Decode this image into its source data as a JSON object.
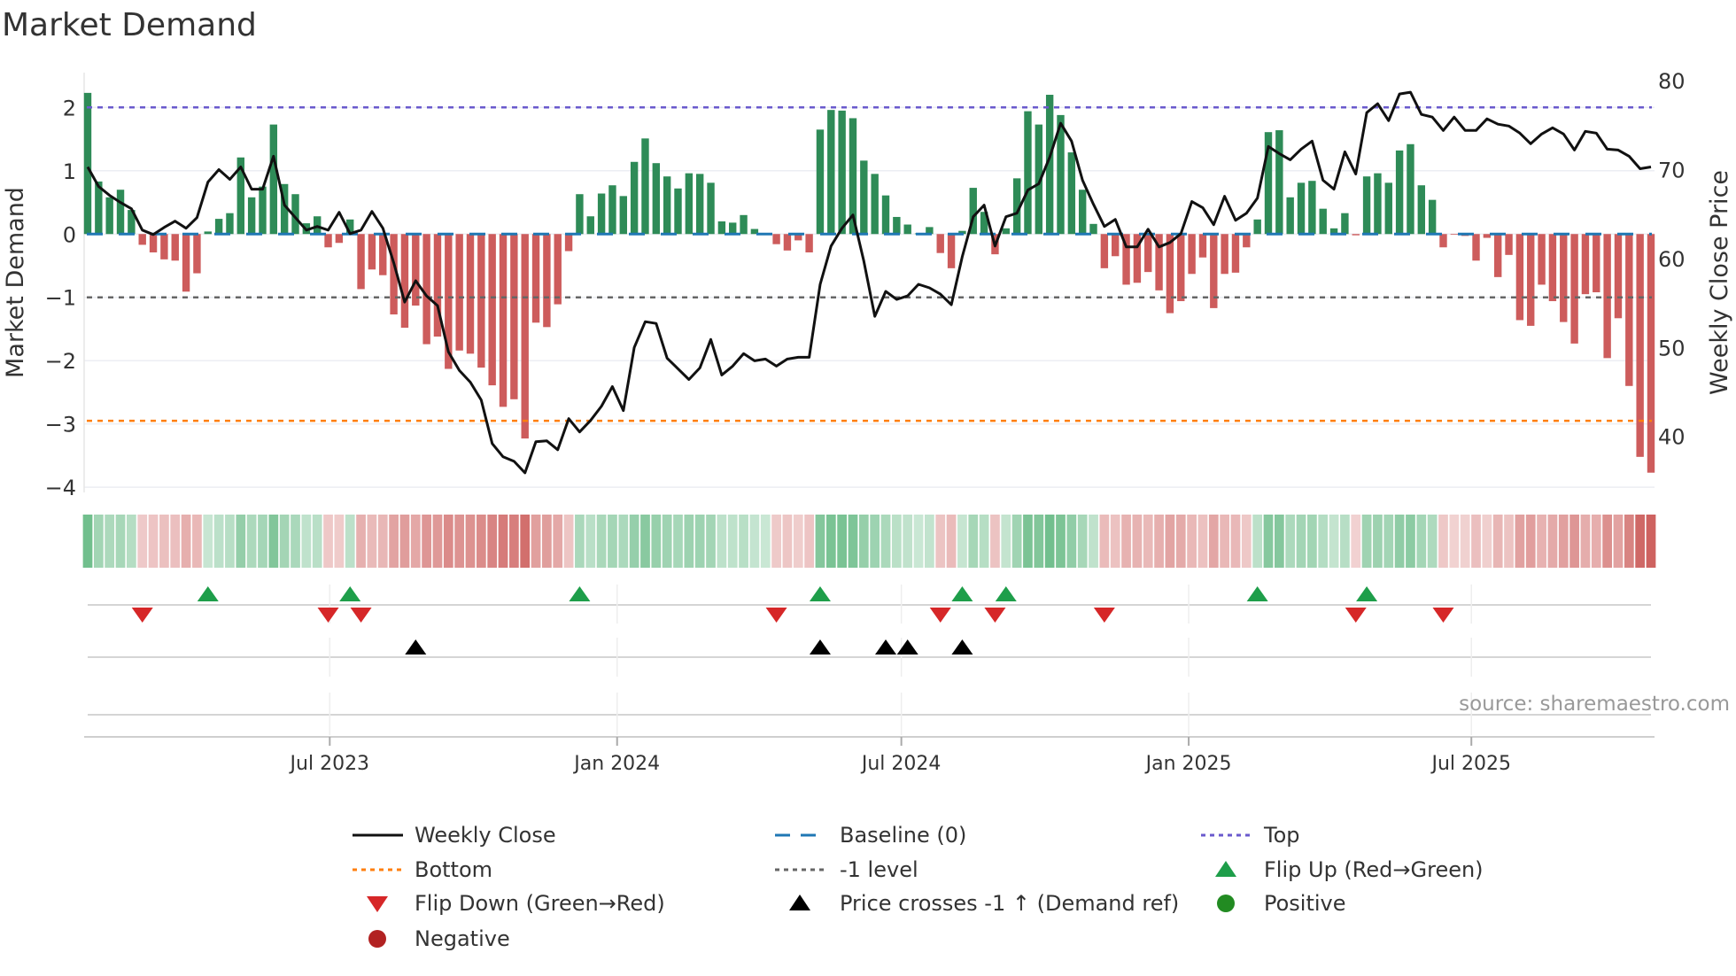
{
  "title": "Market Demand",
  "source": "source: sharemaestro.com",
  "chart_data": {
    "type": "bar",
    "title": "Market Demand",
    "ylabel": "Market Demand",
    "y2label": "Weekly Close Price",
    "start_date": "2023-01-27",
    "frequency": "weekly",
    "ylim": [
      -4.04,
      2.55
    ],
    "y2lim": [
      34.0,
      80.9
    ],
    "yticks": [
      2,
      1,
      0,
      -1,
      -2,
      -3,
      -4
    ],
    "ytick_labels": [
      "2",
      "1",
      "0",
      "−1",
      "−2",
      "−3",
      "−4"
    ],
    "y2ticks": [
      80,
      70,
      60,
      50,
      40
    ],
    "y2tick_labels": [
      "80",
      "70",
      "60",
      "50",
      "40"
    ],
    "xticks": [
      {
        "date": "2023-07-01",
        "label": "Jul 2023"
      },
      {
        "date": "2024-01-01",
        "label": "Jan 2024"
      },
      {
        "date": "2024-07-01",
        "label": "Jul 2024"
      },
      {
        "date": "2025-01-01",
        "label": "Jan 2025"
      },
      {
        "date": "2025-07-01",
        "label": "Jul 2025"
      }
    ],
    "levels": {
      "top": 2.0,
      "bottom": -2.95,
      "minus_one": -1.0,
      "baseline": 0
    },
    "demand": [
      2.23,
      0.83,
      0.58,
      0.7,
      0.38,
      -0.17,
      -0.29,
      -0.4,
      -0.42,
      -0.91,
      -0.62,
      0.04,
      0.24,
      0.33,
      1.21,
      0.58,
      0.75,
      1.73,
      0.79,
      0.63,
      0.17,
      0.28,
      -0.21,
      -0.14,
      0.23,
      -0.87,
      -0.56,
      -0.65,
      -1.27,
      -1.48,
      -1.13,
      -1.74,
      -1.62,
      -2.13,
      -1.84,
      -1.89,
      -2.11,
      -2.39,
      -2.73,
      -2.61,
      -3.23,
      -1.4,
      -1.47,
      -1.11,
      -0.27,
      0.63,
      0.28,
      0.64,
      0.77,
      0.6,
      1.14,
      1.51,
      1.12,
      0.91,
      0.72,
      0.96,
      0.95,
      0.81,
      0.2,
      0.18,
      0.3,
      0.08,
      0.01,
      -0.16,
      -0.26,
      -0.1,
      -0.29,
      1.65,
      1.96,
      1.95,
      1.83,
      1.16,
      0.95,
      0.61,
      0.27,
      0.15,
      0.01,
      0.11,
      -0.3,
      -0.54,
      0.05,
      0.73,
      0.35,
      -0.32,
      0.09,
      0.88,
      1.94,
      1.73,
      2.2,
      1.88,
      1.29,
      0.7,
      0.16,
      -0.54,
      -0.35,
      -0.8,
      -0.77,
      -0.6,
      -0.89,
      -1.25,
      -1.06,
      -0.63,
      -0.37,
      -1.17,
      -0.63,
      -0.61,
      -0.21,
      0.23,
      1.61,
      1.64,
      0.58,
      0.81,
      0.84,
      0.4,
      0.09,
      0.33,
      -0.02,
      0.91,
      0.96,
      0.81,
      1.32,
      1.42,
      0.77,
      0.54,
      -0.21,
      -0.01,
      -0.03,
      -0.42,
      -0.06,
      -0.68,
      -0.33,
      -1.36,
      -1.45,
      -0.8,
      -1.06,
      -1.39,
      -1.73,
      -0.95,
      -0.92,
      -1.96,
      -1.33,
      -2.4,
      -3.52,
      -3.77
    ],
    "weekly_close": [
      70.3,
      68.1,
      67.1,
      66.3,
      65.6,
      63.2,
      62.7,
      63.5,
      64.2,
      63.4,
      64.6,
      68.6,
      70.0,
      68.9,
      70.3,
      67.8,
      67.8,
      71.5,
      66.0,
      64.6,
      63.2,
      63.6,
      63.2,
      65.2,
      62.8,
      63.2,
      65.3,
      63.4,
      59.5,
      55.1,
      57.5,
      55.8,
      54.7,
      49.5,
      47.4,
      46.1,
      44.1,
      39.2,
      37.7,
      37.2,
      35.9,
      39.4,
      39.5,
      38.5,
      42.0,
      40.5,
      41.8,
      43.4,
      45.6,
      42.9,
      50.0,
      52.9,
      52.7,
      48.8,
      47.6,
      46.4,
      47.7,
      50.9,
      46.9,
      47.9,
      49.3,
      48.5,
      48.7,
      47.9,
      48.7,
      48.9,
      48.9,
      57.1,
      61.4,
      63.4,
      64.9,
      59.7,
      53.5,
      56.3,
      55.4,
      55.8,
      57.1,
      56.7,
      56.0,
      54.8,
      60.2,
      64.7,
      66.0,
      61.4,
      64.7,
      65.1,
      67.7,
      68.4,
      71.4,
      75.2,
      73.2,
      68.8,
      66.1,
      63.6,
      64.4,
      61.3,
      61.3,
      63.3,
      61.3,
      61.8,
      62.8,
      66.4,
      65.7,
      63.8,
      67.0,
      64.3,
      65.1,
      66.8,
      72.6,
      71.8,
      71.1,
      72.3,
      73.2,
      68.8,
      67.8,
      72.0,
      69.5,
      76.4,
      77.4,
      75.5,
      78.5,
      78.7,
      76.2,
      75.9,
      74.4,
      75.9,
      74.4,
      74.4,
      75.7,
      75.1,
      74.9,
      74.1,
      72.9,
      74.0,
      74.7,
      74.0,
      72.2,
      74.3,
      74.1,
      72.3,
      72.2,
      71.5,
      70.1,
      70.3
    ],
    "flip_up_weeks": [
      12,
      25,
      46,
      68,
      81,
      85,
      108,
      118
    ],
    "flip_down_weeks": [
      6,
      23,
      26,
      64,
      79,
      84,
      94,
      117,
      125
    ],
    "price_cross_weeks": [
      31,
      68,
      74,
      76,
      81
    ],
    "legend": [
      {
        "label": "Weekly Close",
        "kind": "line-solid",
        "color": "#111111"
      },
      {
        "label": "Baseline (0)",
        "kind": "line-dash",
        "color": "#1f77b4"
      },
      {
        "label": "Top",
        "kind": "line-dot",
        "color": "#6a5acd"
      },
      {
        "label": "Bottom",
        "kind": "line-dot",
        "color": "#ff7f0e"
      },
      {
        "label": "-1 level",
        "kind": "line-dot",
        "color": "#666666"
      },
      {
        "label": "Flip Up (Red→Green)",
        "kind": "tri-up",
        "color": "#1e9e4a"
      },
      {
        "label": "Flip Down (Green→Red)",
        "kind": "tri-down",
        "color": "#d62728"
      },
      {
        "label": "Price crosses -1 ↑ (Demand ref)",
        "kind": "tri-up",
        "color": "#000000"
      },
      {
        "label": "Positive",
        "kind": "dot",
        "color": "#228b22"
      },
      {
        "label": "Negative",
        "kind": "dot",
        "color": "#b22222"
      }
    ],
    "legend_placement": "bottom",
    "colors": {
      "positive": "#2e8b57",
      "negative": "#cd5c5c",
      "line": "#111111",
      "top": "#6a5acd",
      "bottom": "#ff7f0e",
      "minus_one": "#666666",
      "baseline": "#1f77b4"
    }
  }
}
